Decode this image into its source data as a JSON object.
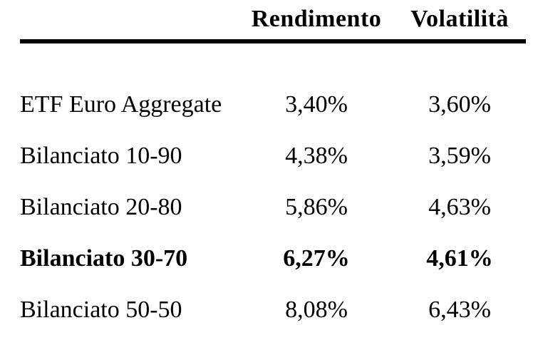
{
  "table": {
    "columns": [
      {
        "label": "Rendimento"
      },
      {
        "label": "Volatilità"
      }
    ],
    "rows": [
      {
        "label": "ETF Euro Aggregate",
        "rendimento": "3,40%",
        "volatilita": "3,60%",
        "bold": false
      },
      {
        "label": "Bilanciato 10-90",
        "rendimento": "4,38%",
        "volatilita": "3,59%",
        "bold": false
      },
      {
        "label": "Bilanciato 20-80",
        "rendimento": "5,86%",
        "volatilita": "4,63%",
        "bold": false
      },
      {
        "label": "Bilanciato 30-70",
        "rendimento": "6,27%",
        "volatilita": "4,61%",
        "bold": true
      },
      {
        "label": "Bilanciato 50-50",
        "rendimento": "8,08%",
        "volatilita": "6,43%",
        "bold": false
      }
    ]
  },
  "colors": {
    "text": "#000000",
    "background": "#ffffff",
    "rule": "#000000"
  },
  "chart_data": {
    "type": "table",
    "title": "",
    "categories": [
      "ETF Euro Aggregate",
      "Bilanciato 10-90",
      "Bilanciato 20-80",
      "Bilanciato 30-70",
      "Bilanciato 50-50"
    ],
    "series": [
      {
        "name": "Rendimento",
        "unit": "%",
        "values": [
          3.4,
          4.38,
          5.86,
          6.27,
          8.08
        ]
      },
      {
        "name": "Volatilità",
        "unit": "%",
        "values": [
          3.6,
          3.59,
          4.63,
          4.61,
          6.43
        ]
      }
    ],
    "highlighted_category": "Bilanciato 30-70",
    "number_format": "italian-decimal-comma"
  }
}
